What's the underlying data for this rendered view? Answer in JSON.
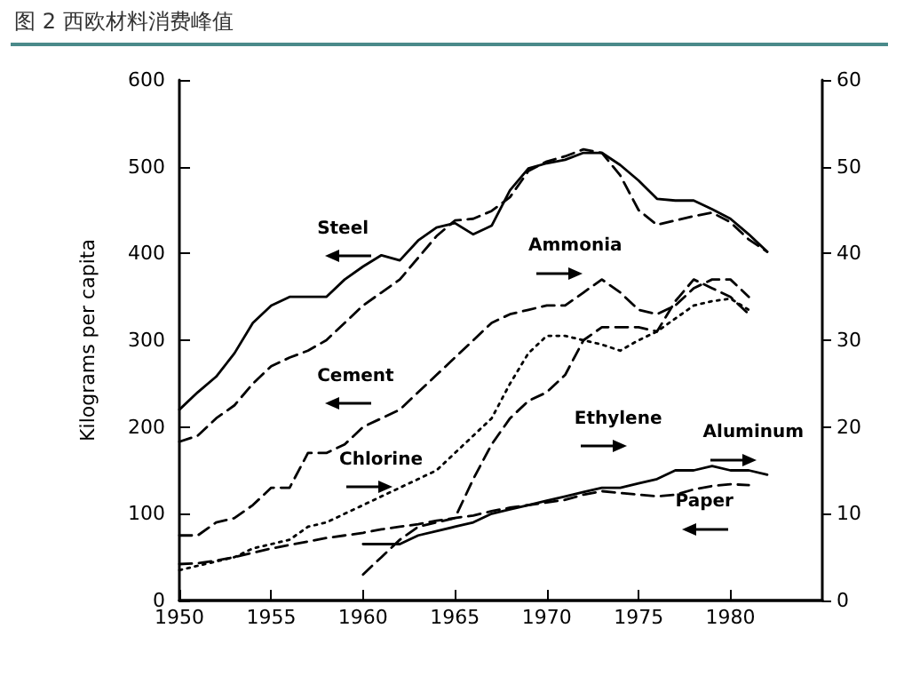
{
  "chart_data": {
    "type": "line",
    "title": "图 2 西欧材料消费峰值",
    "ylabel": "Kilograms per capita",
    "xlim": [
      1950,
      1985
    ],
    "xticks": [
      1950,
      1955,
      1960,
      1965,
      1970,
      1975,
      1980
    ],
    "ylim": [
      0,
      600
    ],
    "yticks": [
      0,
      100,
      200,
      300,
      400,
      500,
      600
    ],
    "y2lim": [
      0,
      60
    ],
    "y2ticks": [
      0,
      10,
      20,
      30,
      40,
      50,
      60
    ],
    "grid": false,
    "legend": false,
    "marker": "none",
    "series": [
      {
        "name": "Steel",
        "color": "#000000",
        "line_style": "solid",
        "x": [
          1950,
          1951,
          1952,
          1953,
          1954,
          1955,
          1956,
          1957,
          1958,
          1959,
          1960,
          1961,
          1962,
          1963,
          1964,
          1965,
          1966,
          1967,
          1968,
          1969,
          1970,
          1971,
          1972,
          1973,
          1974,
          1975,
          1976,
          1977,
          1978,
          1979,
          1980,
          1981,
          1982
        ],
        "values": [
          220,
          240,
          258,
          285,
          320,
          340,
          350,
          350,
          350,
          370,
          385,
          398,
          392,
          415,
          430,
          435,
          422,
          432,
          473,
          498,
          504,
          508,
          516,
          516,
          502,
          484,
          463,
          461,
          461,
          451,
          440,
          422,
          402
        ]
      },
      {
        "name": "Cement",
        "color": "#000000",
        "line_style": "dashed",
        "x": [
          1950,
          1951,
          1952,
          1953,
          1954,
          1955,
          1956,
          1957,
          1958,
          1959,
          1960,
          1961,
          1962,
          1963,
          1964,
          1965,
          1966,
          1967,
          1968,
          1969,
          1970,
          1971,
          1972,
          1973,
          1974,
          1975,
          1976,
          1977,
          1978,
          1979,
          1980,
          1981,
          1982
        ],
        "values": [
          183,
          190,
          210,
          225,
          250,
          270,
          280,
          288,
          300,
          320,
          340,
          355,
          370,
          395,
          420,
          438,
          440,
          449,
          465,
          495,
          506,
          512,
          520,
          516,
          490,
          450,
          433,
          438,
          443,
          447,
          436,
          416,
          402
        ]
      },
      {
        "name": "Ammonia",
        "color": "#000000",
        "line_style": "dashed",
        "axis": "y2",
        "x": [
          1950,
          1951,
          1952,
          1953,
          1954,
          1955,
          1956,
          1957,
          1958,
          1959,
          1960,
          1961,
          1962,
          1963,
          1964,
          1965,
          1966,
          1967,
          1968,
          1969,
          1970,
          1971,
          1972,
          1973,
          1974,
          1975,
          1976,
          1977,
          1978,
          1979,
          1980,
          1981
        ],
        "values": [
          7.5,
          7.5,
          9,
          9.5,
          11,
          13,
          13,
          17,
          17,
          18,
          20,
          21,
          22,
          24,
          26,
          28,
          30,
          32,
          33,
          33.5,
          34,
          34,
          35.5,
          37,
          35.5,
          33.5,
          33,
          34,
          36,
          37,
          37,
          35
        ]
      },
      {
        "name": "Chlorine",
        "color": "#000000",
        "line_style": "dotted",
        "axis": "y2",
        "x": [
          1950,
          1951,
          1952,
          1953,
          1954,
          1955,
          1956,
          1957,
          1958,
          1959,
          1960,
          1961,
          1962,
          1963,
          1964,
          1965,
          1966,
          1967,
          1968,
          1969,
          1970,
          1971,
          1972,
          1973,
          1974,
          1975,
          1976,
          1977,
          1978,
          1979,
          1980,
          1981
        ],
        "values": [
          3.5,
          4,
          4.5,
          5,
          6,
          6.5,
          7,
          8.5,
          9,
          10,
          11,
          12,
          13,
          14,
          15,
          17,
          19,
          21,
          25,
          28.5,
          30.5,
          30.5,
          30,
          29.5,
          28.8,
          30,
          31,
          32.5,
          34,
          34.5,
          34.8,
          33.5
        ]
      },
      {
        "name": "Ethylene",
        "color": "#000000",
        "line_style": "dashed",
        "axis": "y2",
        "x": [
          1960,
          1961,
          1962,
          1963,
          1964,
          1965,
          1966,
          1967,
          1968,
          1969,
          1970,
          1971,
          1972,
          1973,
          1974,
          1975,
          1976,
          1977,
          1978,
          1979,
          1980,
          1981
        ],
        "values": [
          3,
          5,
          7,
          8.5,
          9,
          9.5,
          14,
          18,
          21,
          23,
          24,
          26,
          30,
          31.5,
          31.5,
          31.5,
          31,
          34.5,
          37,
          36,
          35,
          33
        ]
      },
      {
        "name": "Aluminum",
        "color": "#000000",
        "line_style": "solid",
        "axis": "y2",
        "x": [
          1960,
          1961,
          1962,
          1963,
          1964,
          1965,
          1966,
          1967,
          1968,
          1969,
          1970,
          1971,
          1972,
          1973,
          1974,
          1975,
          1976,
          1977,
          1978,
          1979,
          1980,
          1981,
          1982
        ],
        "values": [
          6.5,
          6.5,
          6.5,
          7.5,
          8,
          8.5,
          9,
          10,
          10.5,
          11,
          11.5,
          12,
          12.5,
          13,
          13,
          13.5,
          14,
          15,
          15,
          15.5,
          15,
          15,
          14.5
        ]
      },
      {
        "name": "Paper",
        "color": "#000000",
        "line_style": "dashed",
        "x": [
          1950,
          1951,
          1952,
          1953,
          1954,
          1955,
          1956,
          1957,
          1958,
          1959,
          1960,
          1961,
          1962,
          1963,
          1964,
          1965,
          1966,
          1967,
          1968,
          1969,
          1970,
          1971,
          1972,
          1973,
          1974,
          1975,
          1976,
          1977,
          1978,
          1979,
          1980,
          1981
        ],
        "values": [
          42,
          43,
          46,
          50,
          55,
          60,
          64,
          68,
          72,
          75,
          78,
          82,
          85,
          88,
          92,
          95,
          98,
          103,
          107,
          110,
          113,
          116,
          122,
          126,
          124,
          122,
          120,
          122,
          128,
          132,
          134,
          133
        ]
      }
    ]
  }
}
